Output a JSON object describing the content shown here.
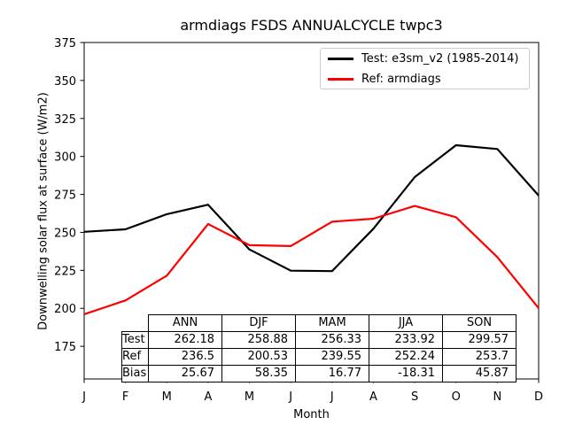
{
  "chart_data": {
    "type": "line",
    "title": "armdiags FSDS ANNUALCYCLE twpc3",
    "xlabel": "Month",
    "ylabel": "Downwelling solar flux at surface (W/m2)",
    "x_tick_labels": [
      "J",
      "F",
      "M",
      "A",
      "M",
      "J",
      "J",
      "A",
      "S",
      "O",
      "N",
      "D"
    ],
    "y_ticks": [
      375,
      350,
      325,
      300,
      275,
      250,
      225,
      200,
      175
    ],
    "ylim": [
      153.5,
      375
    ],
    "grid": false,
    "legend_position": "upper-right",
    "series": [
      {
        "name": "Test: e3sm_v2 (1985-2014)",
        "color": "#000000",
        "values": [
          250.4,
          252.0,
          262.0,
          268.2,
          238.8,
          224.8,
          224.5,
          252.4,
          286.4,
          307.4,
          304.9,
          274.2
        ]
      },
      {
        "name": "Ref: armdiags",
        "color": "#ff0000",
        "values": [
          196.1,
          205.2,
          221.5,
          255.5,
          241.6,
          241.0,
          257.0,
          259.0,
          267.4,
          260.0,
          233.7,
          200.1
        ]
      }
    ],
    "stats_table": {
      "columns": [
        "ANN",
        "DJF",
        "MAM",
        "JJA",
        "SON"
      ],
      "rows": [
        {
          "label": "Test",
          "values": [
            "262.18",
            "258.88",
            "256.33",
            "233.92",
            "299.57"
          ]
        },
        {
          "label": "Ref",
          "values": [
            "236.5",
            "200.53",
            "239.55",
            "252.24",
            "253.7"
          ]
        },
        {
          "label": "Bias",
          "values": [
            "25.67",
            "58.35",
            "16.77",
            "-18.31",
            "45.87"
          ]
        }
      ]
    }
  }
}
